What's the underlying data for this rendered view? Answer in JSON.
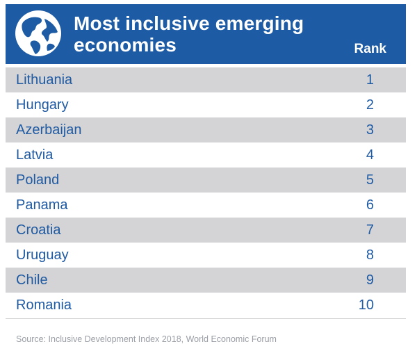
{
  "chart_data": {
    "type": "table",
    "title": "Most inclusive emerging economies",
    "columns": [
      "",
      "Rank"
    ],
    "rows": [
      {
        "country": "Lithuania",
        "rank": 1
      },
      {
        "country": "Hungary",
        "rank": 2
      },
      {
        "country": "Azerbaijan",
        "rank": 3
      },
      {
        "country": "Latvia",
        "rank": 4
      },
      {
        "country": "Poland",
        "rank": 5
      },
      {
        "country": "Panama",
        "rank": 6
      },
      {
        "country": "Croatia",
        "rank": 7
      },
      {
        "country": "Uruguay",
        "rank": 8
      },
      {
        "country": "Chile",
        "rank": 9
      },
      {
        "country": "Romania",
        "rank": 10
      }
    ],
    "rank_header": "Rank",
    "source": "Source: Inclusive Development Index 2018, World Economic Forum"
  },
  "colors": {
    "header_bg": "#1d5ba4",
    "text": "#1f5aa2",
    "shaded_row": "#d4d4d6",
    "source_text": "#9a9ea6"
  },
  "icons": {
    "header_icon": "globe-icon"
  }
}
